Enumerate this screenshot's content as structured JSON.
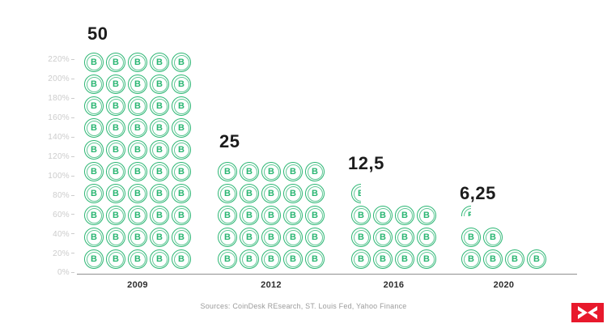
{
  "chart_data": {
    "type": "bar",
    "subtype": "pictogram",
    "title": "",
    "categories": [
      "2009",
      "2012",
      "2016",
      "2020"
    ],
    "values": [
      50,
      25,
      12.5,
      6.25
    ],
    "value_labels": [
      "50",
      "25",
      "12,5",
      "6,25"
    ],
    "pictogram_columns": [
      5,
      5,
      4,
      4
    ],
    "y_ticks": [
      "220%",
      "200%",
      "180%",
      "160%",
      "140%",
      "120%",
      "100%",
      "80%",
      "60%",
      "40%",
      "20%",
      "0%"
    ],
    "xlabel": "",
    "ylabel": "",
    "grid": false,
    "legend": false,
    "icon": "bitcoin-coin",
    "icon_glyph": "B"
  },
  "footer": {
    "source": "Sources: CoinDesk REsearch, ST. Louis Fed, Yahoo Finance"
  },
  "colors": {
    "coin": "#2BB673",
    "value_label": "#1c1c1c",
    "year_label": "#2d2d2d",
    "tick_label": "#cccccc",
    "axis_line": "#8f8f8f",
    "source_text": "#9b9b9b",
    "logo_red": "#e8192c"
  }
}
